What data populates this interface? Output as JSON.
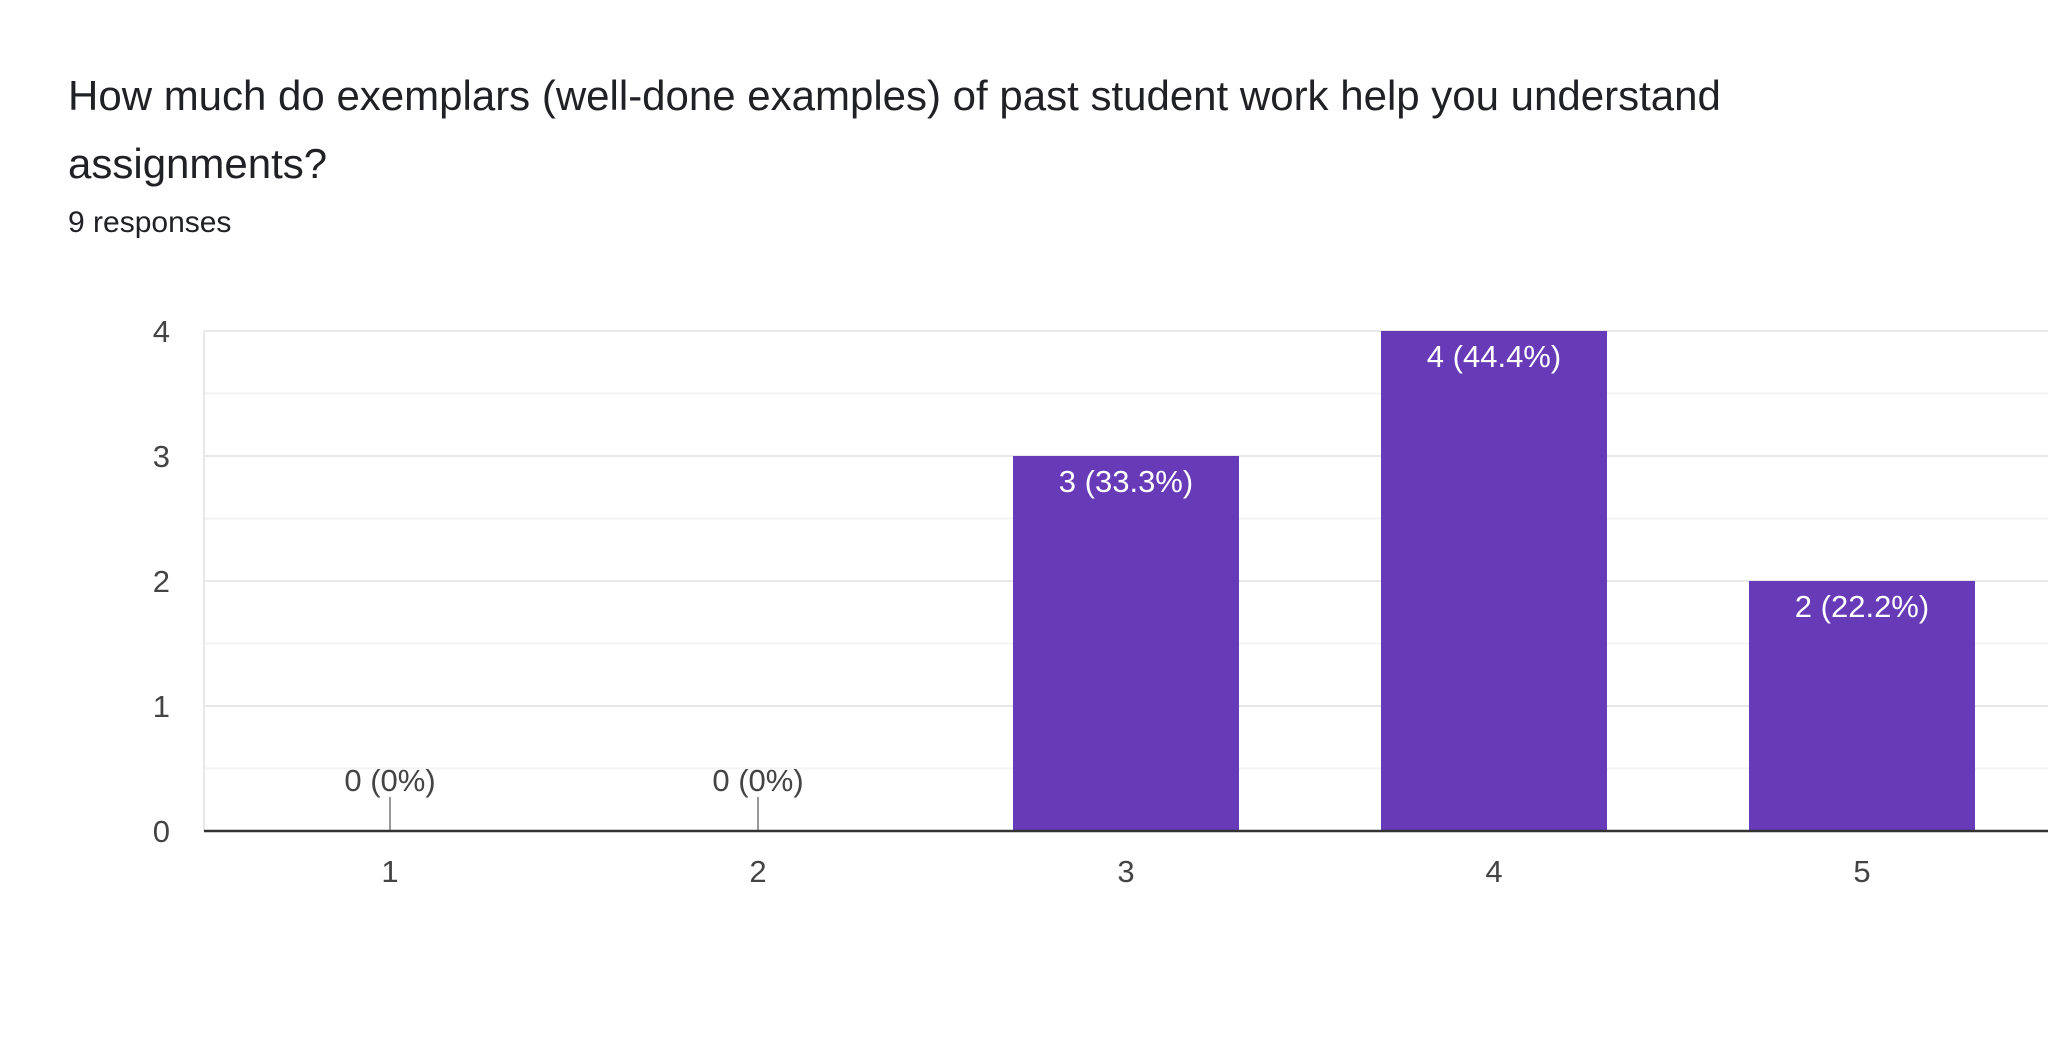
{
  "question": {
    "title": "How much do exemplars (well-done examples) of past student work help you understand assignments?",
    "responses": "9 responses"
  },
  "colors": {
    "bar": "#673ab7",
    "grid": "#e8e8e8",
    "minor_grid": "#f3f3f3",
    "axis": "#333333",
    "zero_stem": "#999999",
    "label_inside": "#ffffff",
    "label_outside": "#444444"
  },
  "chart_data": {
    "type": "bar",
    "categories": [
      "1",
      "2",
      "3",
      "4",
      "5"
    ],
    "values": [
      0,
      0,
      3,
      4,
      2
    ],
    "data_labels": [
      "0 (0%)",
      "0 (0%)",
      "3 (33.3%)",
      "4 (44.4%)",
      "2 (22.2%)"
    ],
    "y_ticks": [
      "0",
      "1",
      "2",
      "3",
      "4"
    ],
    "ylim": [
      0,
      4
    ],
    "grid": true
  }
}
